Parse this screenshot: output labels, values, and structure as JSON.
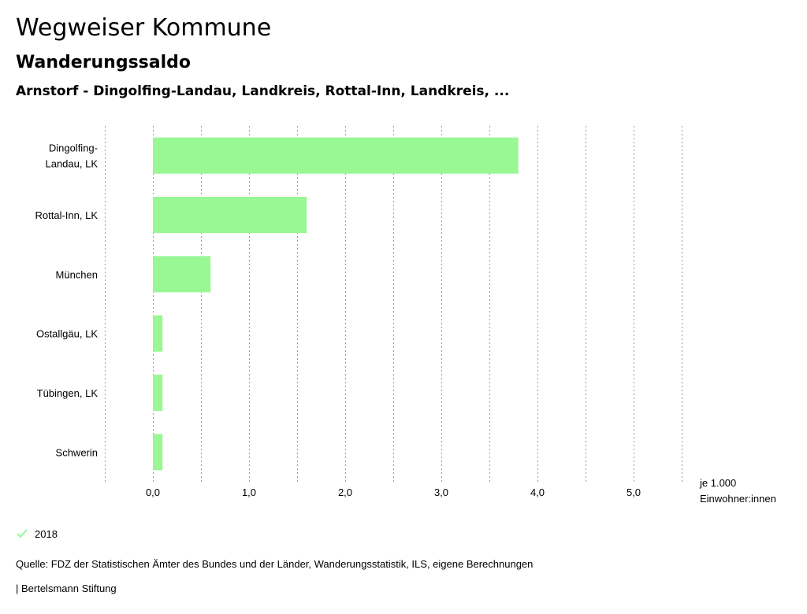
{
  "page": {
    "title": "Wegweiser Kommune",
    "subtitle": "Wanderungssaldo",
    "region": "Arnstorf - Dingolfing-Landau, Landkreis, Rottal-Inn, Landkreis, ...",
    "source": "Quelle: FDZ der Statistischen Ämter des Bundes und der Länder, Wanderungsstatistik, ILS, eigene Berechnungen",
    "footer": "| Bertelsmann Stiftung"
  },
  "legend": {
    "label": "2018",
    "color": "#99f794"
  },
  "chart_data": {
    "type": "bar",
    "orientation": "horizontal",
    "categories": [
      [
        "Dingolfing-",
        "Landau, LK"
      ],
      [
        "Rottal-Inn, LK"
      ],
      [
        "München"
      ],
      [
        "Ostallgäu, LK"
      ],
      [
        "Tübingen, LK"
      ],
      [
        "Schwerin"
      ]
    ],
    "series": [
      {
        "name": "2018",
        "values": [
          3.8,
          1.6,
          0.6,
          0.1,
          0.1,
          0.1
        ],
        "color": "#99f794"
      }
    ],
    "xticks": [
      0,
      1,
      2,
      3,
      4,
      5
    ],
    "xtick_labels": [
      "0,0",
      "1,0",
      "2,0",
      "3,0",
      "4,0",
      "5,0"
    ],
    "xlim": [
      -0.5,
      5.5
    ],
    "grid": true,
    "unit_label": [
      "je 1.000",
      "Einwohner:innen"
    ]
  }
}
